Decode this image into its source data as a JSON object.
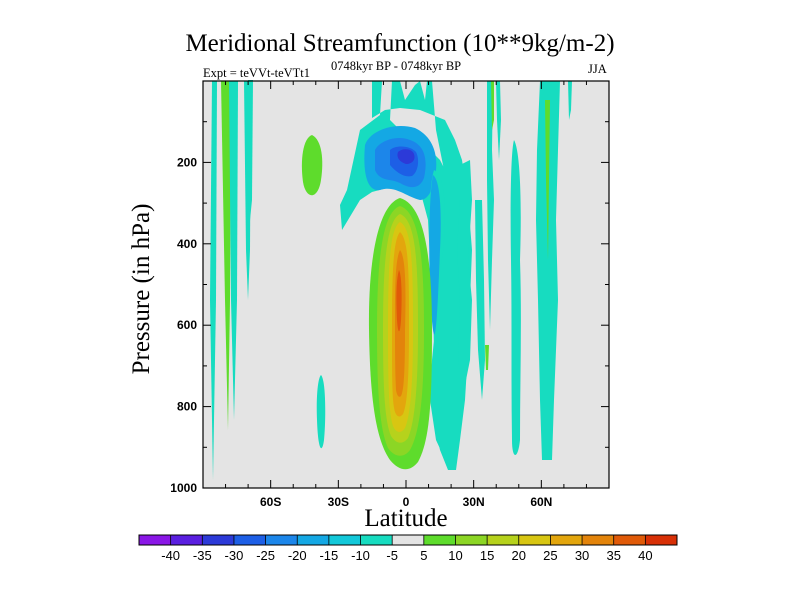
{
  "chart_data": {
    "type": "heatmap",
    "title": "Meridional Streamfunction (10**9kg/m-2)",
    "subtitle_left": "Expt = teVVt-teVTt1",
    "subtitle_center": "0748kyr BP - 0748kyr BP",
    "subtitle_right": "JJA",
    "xlabel": "Latitude",
    "ylabel": "Pressure (in hPa)",
    "x_range": [
      -90,
      90
    ],
    "y_range": [
      0,
      1000
    ],
    "y_inverted": true,
    "x_ticks": [
      {
        "value": -60,
        "label": "60S"
      },
      {
        "value": -30,
        "label": "30S"
      },
      {
        "value": 0,
        "label": "0"
      },
      {
        "value": 30,
        "label": "30N"
      },
      {
        "value": 60,
        "label": "60N"
      }
    ],
    "y_ticks": [
      {
        "value": 200,
        "label": "200"
      },
      {
        "value": 400,
        "label": "400"
      },
      {
        "value": 600,
        "label": "600"
      },
      {
        "value": 800,
        "label": "800"
      },
      {
        "value": 1000,
        "label": "1000"
      }
    ],
    "colorbar": {
      "labels": [
        "-40",
        "-35",
        "-30",
        "-25",
        "-20",
        "-15",
        "-10",
        "-5",
        "5",
        "10",
        "15",
        "20",
        "25",
        "30",
        "35",
        "40"
      ],
      "colors": [
        "#8a17e6",
        "#5a1fe0",
        "#2c3ad8",
        "#1d5fe6",
        "#1c86ea",
        "#14a8e4",
        "#13c8d9",
        "#17dcc0",
        "#e4e4e4",
        "#5edc2c",
        "#8cd625",
        "#b6d21c",
        "#d8c612",
        "#e3a60d",
        "#e3840b",
        "#e05a08",
        "#d83006"
      ]
    },
    "contour_fields": [
      {
        "lat": -76,
        "p": 500,
        "value": 5
      },
      {
        "lat": -72,
        "p": 420,
        "value": -5
      },
      {
        "lat": -37,
        "p": 200,
        "value": 5
      },
      {
        "lat": -35,
        "p": 860,
        "value": 5
      },
      {
        "lat": -2,
        "p": 170,
        "value": -30
      },
      {
        "lat": 0,
        "p": 620,
        "value": 30
      },
      {
        "lat": 15,
        "p": 450,
        "value": -20
      },
      {
        "lat": 58,
        "p": 400,
        "value": -5
      }
    ]
  }
}
